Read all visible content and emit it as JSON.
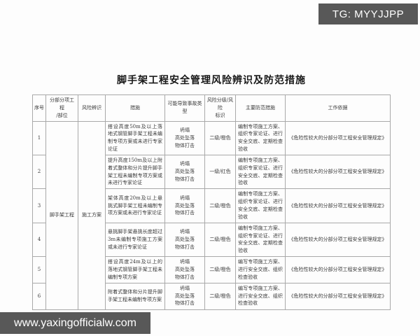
{
  "badges": {
    "telegram": "TG: MYYJJPP",
    "watermark": "www.yaxingofficialw.com"
  },
  "document": {
    "title": "脚手架工程安全管理风险辨识及防范措施",
    "table": {
      "headers": [
        "序号",
        "分部分项工程\n/部位",
        "风险辨识",
        "措施",
        "可能导致事故类型",
        "风险分级/风险\n标识",
        "主要防范措施",
        "工作依据"
      ],
      "merged": {
        "project": "脚手架工程",
        "risk_identification": "施工方案"
      },
      "rows": [
        {
          "no": "1",
          "hazard": "搭设高度50m及以上落地式钢管脚手架工程未编制专项方案或未进行专家论证",
          "accidents": "坍塌\n高处坠落\n物体打击",
          "level": "二级/橙色",
          "measures": "编制专项施工方案、组织专家论证、进行安全交底、定期检查验收",
          "basis": "《危险性较大的分部分项工程安全管理规定》"
        },
        {
          "no": "2",
          "hazard": "提升高度150m及以上附着式整体和分片提升脚手架工程未编制专项方案或未进行专家论证",
          "accidents": "坍塌\n高处坠落\n物体打击",
          "level": "一级/红色",
          "measures": "编制专项施工方案、组织专家论证、进行安全交底、定期检查验收",
          "basis": "《危险性较大的分部分项工程安全管理规定》"
        },
        {
          "no": "3",
          "hazard": "架体高度20m及以上悬挑式脚手架工程未编制专项方案或未进行专家论证",
          "accidents": "坍塌\n高处坠落\n物体打击",
          "level": "二级/橙色",
          "measures": "编制专项施工方案、组织专家论证、进行安全交底、定期检查验收",
          "basis": "《危险性较大的分部分项工程安全管理规定》"
        },
        {
          "no": "4",
          "hazard": "悬挑脚手架悬挑长度超过3m未编制专项施工方案或未进行专家论证",
          "accidents": "坍塌\n高处坠落\n物体打击",
          "level": "二级/橙色",
          "measures": "编制专项施工方案、组织专家论证、进行安全交底、定期检查验收",
          "basis": "《危险性较大的分部分项工程安全管理规定》"
        },
        {
          "no": "5",
          "hazard": "搭设高度24m及以上的落地式钢管脚手架工程未编制专项方案",
          "accidents": "坍塌\n高处坠落\n物体打击",
          "level": "二级/橙色",
          "measures": "编写专项施工方案、进行安全交底、组织检查验收",
          "basis": "《危险性较大的分部分项工程安全管理规定》"
        },
        {
          "no": "6",
          "hazard": "附着式整体和分片提升脚手架工程未编制专项方案",
          "accidents": "坍塌\n高处坠落\n物体打击",
          "level": "二级/橙色",
          "measures": "编写专项施工方案、进行安全交底、组织检查验收",
          "basis": "《危险性较大的分部分项工程安全管理规定》"
        }
      ]
    }
  }
}
